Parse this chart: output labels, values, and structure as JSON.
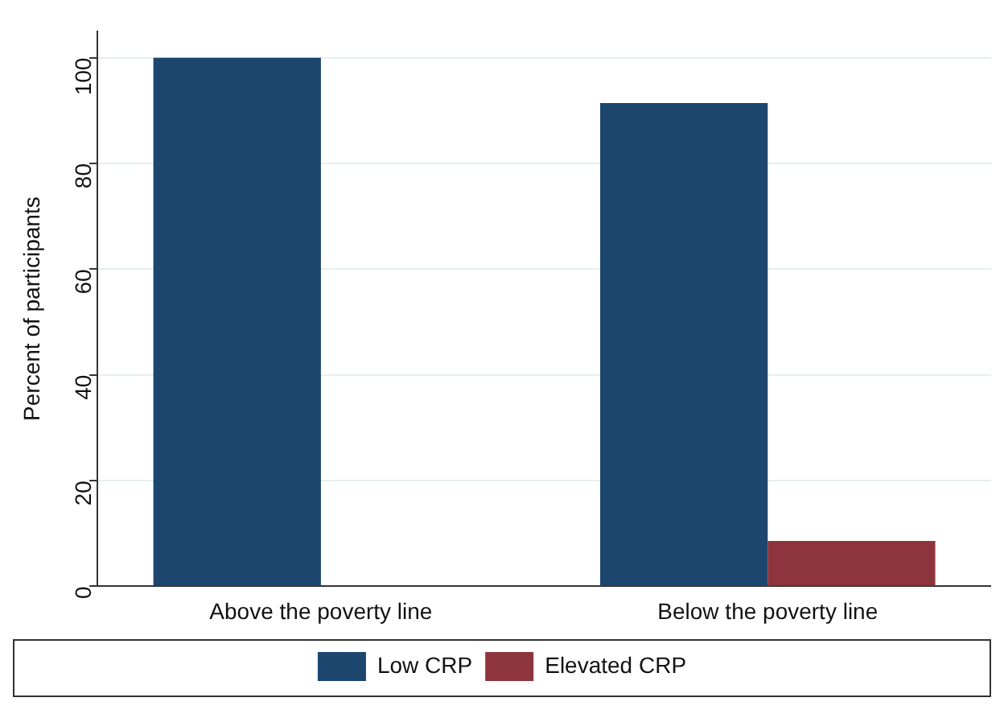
{
  "chart_data": {
    "type": "bar",
    "ylabel": "Percent of participants",
    "categories": [
      "Above the poverty line",
      "Below the poverty line"
    ],
    "series": [
      {
        "name": "Low CRP",
        "color": "#1c466e",
        "values": [
          100,
          91.4
        ]
      },
      {
        "name": "Elevated CRP",
        "color": "#8e343c",
        "values": [
          0,
          8.6
        ]
      }
    ],
    "ylim": [
      0,
      105
    ],
    "yticks": [
      0,
      20,
      40,
      60,
      80,
      100
    ],
    "grid": "y",
    "legend": "bottom"
  }
}
